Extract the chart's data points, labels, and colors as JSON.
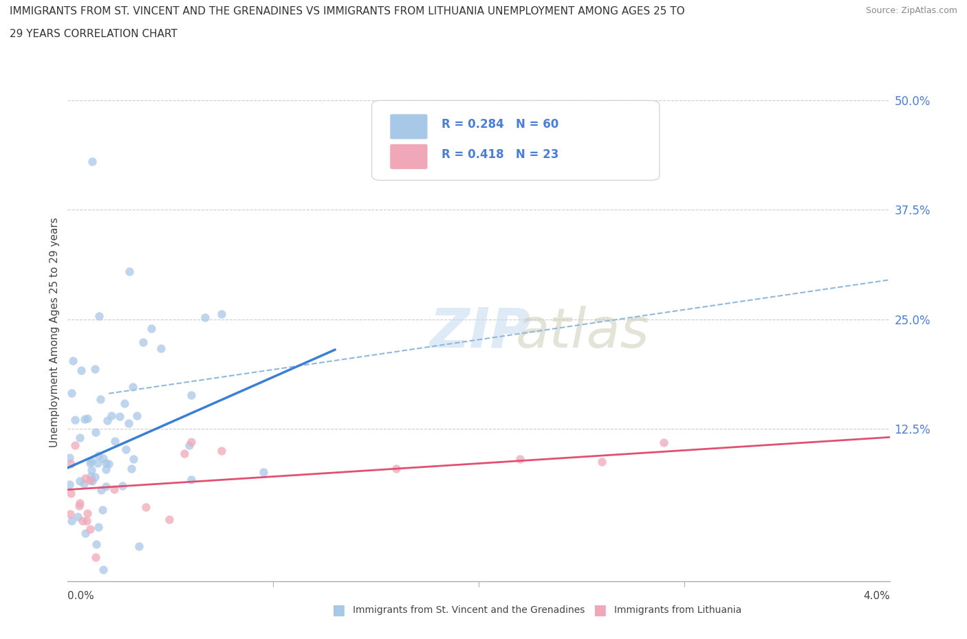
{
  "title_line1": "IMMIGRANTS FROM ST. VINCENT AND THE GRENADINES VS IMMIGRANTS FROM LITHUANIA UNEMPLOYMENT AMONG AGES 25 TO",
  "title_line2": "29 YEARS CORRELATION CHART",
  "source": "Source: ZipAtlas.com",
  "ylabel": "Unemployment Among Ages 25 to 29 years",
  "xlim": [
    0.0,
    0.04
  ],
  "ylim": [
    -0.05,
    0.52
  ],
  "blue_scatter_color": "#A8C8E8",
  "pink_scatter_color": "#F0A8B8",
  "blue_line_color": "#3A7FD5",
  "pink_line_color": "#E05070",
  "dashed_line_color": "#90B8DC",
  "text_color": "#4A7FD5",
  "title_color": "#333333",
  "legend_label1": "Immigrants from St. Vincent and the Grenadines",
  "legend_label2": "Immigrants from Lithuania",
  "blue_R": 0.284,
  "blue_N": 60,
  "pink_R": 0.418,
  "pink_N": 23,
  "watermark_zip_color": "#C8DCF0",
  "watermark_atlas_color": "#C8C8B0",
  "blue_trend_x": [
    0.0,
    0.013
  ],
  "blue_trend_y": [
    0.08,
    0.215
  ],
  "pink_trend_x": [
    0.0,
    0.04
  ],
  "pink_trend_y": [
    0.055,
    0.115
  ],
  "dash_trend_x": [
    0.002,
    0.04
  ],
  "dash_trend_y": [
    0.165,
    0.295
  ],
  "ytick_positions": [
    0.0,
    0.125,
    0.25,
    0.375,
    0.5
  ],
  "ytick_labels": [
    "",
    "12.5%",
    "25.0%",
    "37.5%",
    "50.0%"
  ],
  "xtick_minor": [
    0.01,
    0.02,
    0.03
  ]
}
